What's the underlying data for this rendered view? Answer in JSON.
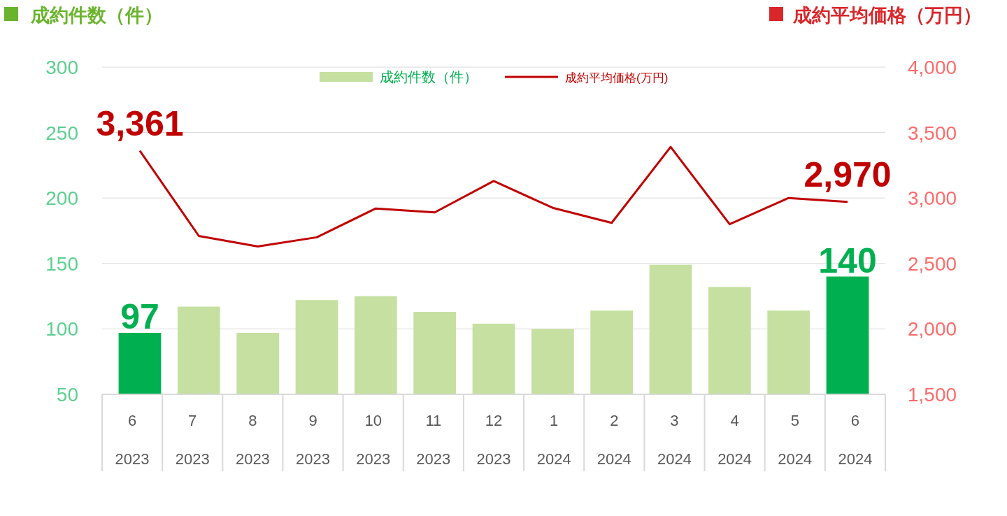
{
  "chart_data": {
    "type": "bar",
    "ylabel": "成約件数（件）",
    "y2label": "成約平均価格（万円）",
    "categories": [
      "6\n2023",
      "7\n2023",
      "8\n2023",
      "9\n2023",
      "10\n2023",
      "11\n2023",
      "12\n2023",
      "1\n2024",
      "2\n2024",
      "3\n2024",
      "4\n2024",
      "5\n2024",
      "6\n2024"
    ],
    "series": [
      {
        "name": "成約件数（件）",
        "color": "#c5e0a0",
        "colors": [
          "#00b050",
          "#c5e0a0",
          "#c5e0a0",
          "#c5e0a0",
          "#c5e0a0",
          "#c5e0a0",
          "#c5e0a0",
          "#c5e0a0",
          "#c5e0a0",
          "#c5e0a0",
          "#c5e0a0",
          "#c5e0a0",
          "#00b050"
        ],
        "values": [
          97,
          117,
          97,
          122,
          125,
          113,
          104,
          100,
          114,
          149,
          132,
          114,
          140
        ],
        "value_labels": [
          "97",
          null,
          null,
          null,
          null,
          null,
          null,
          null,
          null,
          null,
          null,
          null,
          "140"
        ]
      },
      {
        "name": "成約平均価格(万円)",
        "type": "line",
        "axis": "y2",
        "color": "#c00000",
        "values": [
          3361,
          2710,
          2630,
          2700,
          2920,
          2890,
          3130,
          2925,
          2810,
          3390,
          2800,
          3000,
          2970
        ],
        "value_labels": [
          "3,361",
          null,
          null,
          null,
          null,
          null,
          null,
          null,
          null,
          null,
          null,
          null,
          "2,970"
        ]
      }
    ],
    "ylim": [
      50,
      300
    ],
    "yticks": [
      50,
      100,
      150,
      200,
      250,
      300
    ],
    "y2lim": [
      1500,
      4000
    ],
    "y2ticks": [
      {
        "value": 1500,
        "label": "1,500"
      },
      {
        "value": 2000,
        "label": "2,000"
      },
      {
        "value": 2500,
        "label": "2,500"
      },
      {
        "value": 3000,
        "label": "3,000"
      },
      {
        "value": 3500,
        "label": "3,500"
      },
      {
        "value": 4000,
        "label": "4,000"
      }
    ],
    "grid": "y",
    "legend": "top",
    "marker": "none",
    "line_style": "solid"
  }
}
